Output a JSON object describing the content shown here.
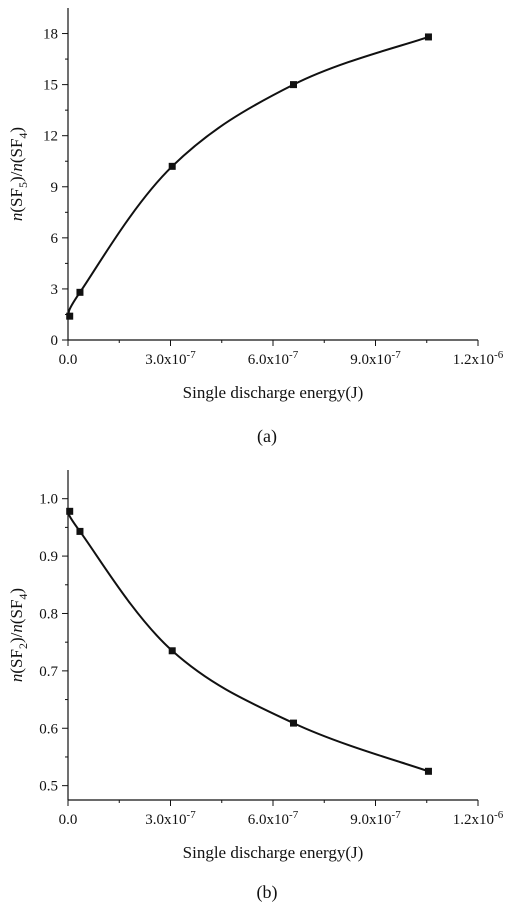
{
  "chart_data": [
    {
      "type": "scatter",
      "panel_label": "(a)",
      "xlabel": "Single discharge energy(J)",
      "ylabel": {
        "pre": "n",
        "sp1": "(SF",
        "sub1": "5",
        "mid": ")/",
        "it2": "n",
        "sp2": "(SF",
        "sub2": "4",
        "post": ")"
      },
      "xlim": [
        0,
        1.2e-06
      ],
      "ylim": [
        0,
        19.5
      ],
      "x_ticks": [
        {
          "value": 0,
          "mant": "0.0",
          "exp": ""
        },
        {
          "value": 3e-07,
          "mant": "3.0x10",
          "exp": "-7"
        },
        {
          "value": 6e-07,
          "mant": "6.0x10",
          "exp": "-7"
        },
        {
          "value": 9e-07,
          "mant": "9.0x10",
          "exp": "-7"
        },
        {
          "value": 1.2e-06,
          "mant": "1.2x10",
          "exp": "-6"
        }
      ],
      "y_ticks": [
        {
          "value": 0,
          "label": "0"
        },
        {
          "value": 3,
          "label": "3"
        },
        {
          "value": 6,
          "label": "6"
        },
        {
          "value": 9,
          "label": "9"
        },
        {
          "value": 12,
          "label": "12"
        },
        {
          "value": 15,
          "label": "15"
        },
        {
          "value": 18,
          "label": "18"
        }
      ],
      "series": [
        {
          "points": [
            {
              "x": 5e-09,
              "y": 1.4
            },
            {
              "x": 3.5e-08,
              "y": 2.8
            },
            {
              "x": 3.05e-07,
              "y": 10.2
            },
            {
              "x": 6.6e-07,
              "y": 15.0
            },
            {
              "x": 1.055e-06,
              "y": 17.8
            }
          ],
          "fit": "curve"
        }
      ],
      "grid": false
    },
    {
      "type": "scatter",
      "panel_label": "(b)",
      "xlabel": "Single discharge energy(J)",
      "ylabel": {
        "pre": "n",
        "sp1": "(SF",
        "sub1": "2",
        "mid": ")/",
        "it2": "n",
        "sp2": "(SF",
        "sub2": "4",
        "post": ")"
      },
      "xlim": [
        0,
        1.2e-06
      ],
      "ylim": [
        0.475,
        1.05
      ],
      "x_ticks": [
        {
          "value": 0,
          "mant": "0.0",
          "exp": ""
        },
        {
          "value": 3e-07,
          "mant": "3.0x10",
          "exp": "-7"
        },
        {
          "value": 6e-07,
          "mant": "6.0x10",
          "exp": "-7"
        },
        {
          "value": 9e-07,
          "mant": "9.0x10",
          "exp": "-7"
        },
        {
          "value": 1.2e-06,
          "mant": "1.2x10",
          "exp": "-6"
        }
      ],
      "y_ticks": [
        {
          "value": 0.5,
          "label": "0.5"
        },
        {
          "value": 0.6,
          "label": "0.6"
        },
        {
          "value": 0.7,
          "label": "0.7"
        },
        {
          "value": 0.8,
          "label": "0.8"
        },
        {
          "value": 0.9,
          "label": "0.9"
        },
        {
          "value": 1.0,
          "label": "1.0"
        }
      ],
      "series": [
        {
          "points": [
            {
              "x": 5e-09,
              "y": 0.978
            },
            {
              "x": 3.5e-08,
              "y": 0.943
            },
            {
              "x": 3.05e-07,
              "y": 0.735
            },
            {
              "x": 6.6e-07,
              "y": 0.609
            },
            {
              "x": 1.055e-06,
              "y": 0.525
            }
          ],
          "fit": "curve"
        }
      ],
      "grid": false
    }
  ]
}
